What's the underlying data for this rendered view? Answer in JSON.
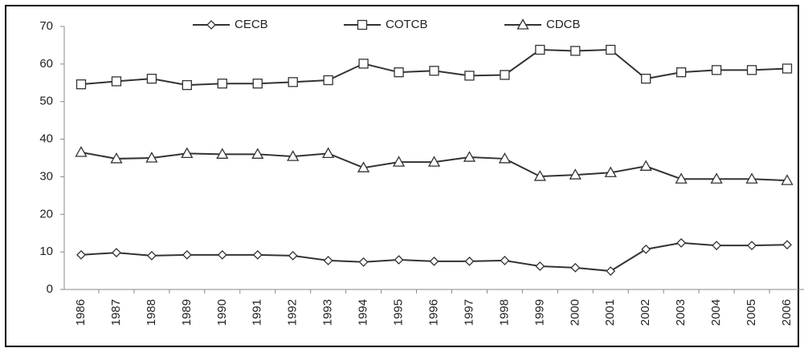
{
  "chart_data": {
    "type": "line",
    "categories": [
      "1986",
      "1987",
      "1988",
      "1989",
      "1990",
      "1991",
      "1992",
      "1993",
      "1994",
      "1995",
      "1996",
      "1997",
      "1998",
      "1999",
      "2000",
      "2001",
      "2002",
      "2003",
      "2004",
      "2005",
      "2006"
    ],
    "series": [
      {
        "name": "CECB",
        "color": "#333333",
        "marker": "diamond",
        "values": [
          9.2,
          9.8,
          9.0,
          9.2,
          9.2,
          9.2,
          9.0,
          7.7,
          7.3,
          7.9,
          7.5,
          7.5,
          7.7,
          6.2,
          5.8,
          4.9,
          10.7,
          12.4,
          11.7,
          11.7,
          11.9
        ]
      },
      {
        "name": "COTCB",
        "color": "#333333",
        "marker": "square",
        "values": [
          54.6,
          55.4,
          56.1,
          54.4,
          54.8,
          54.8,
          55.2,
          55.7,
          60.1,
          57.8,
          58.2,
          56.9,
          57.1,
          63.8,
          63.5,
          63.8,
          56.1,
          57.8,
          58.4,
          58.4,
          58.8
        ]
      },
      {
        "name": "CDCB",
        "color": "#333333",
        "marker": "triangle",
        "values": [
          36.5,
          34.8,
          35.0,
          36.2,
          36.0,
          36.0,
          35.4,
          36.2,
          32.4,
          33.9,
          33.9,
          35.2,
          34.8,
          30.1,
          30.5,
          31.1,
          32.8,
          29.4,
          29.4,
          29.4,
          29.0
        ]
      }
    ],
    "ylim": [
      0,
      70
    ],
    "yticks": [
      0,
      10,
      20,
      30,
      40,
      50,
      60,
      70
    ],
    "grid": false,
    "legend": "top"
  }
}
